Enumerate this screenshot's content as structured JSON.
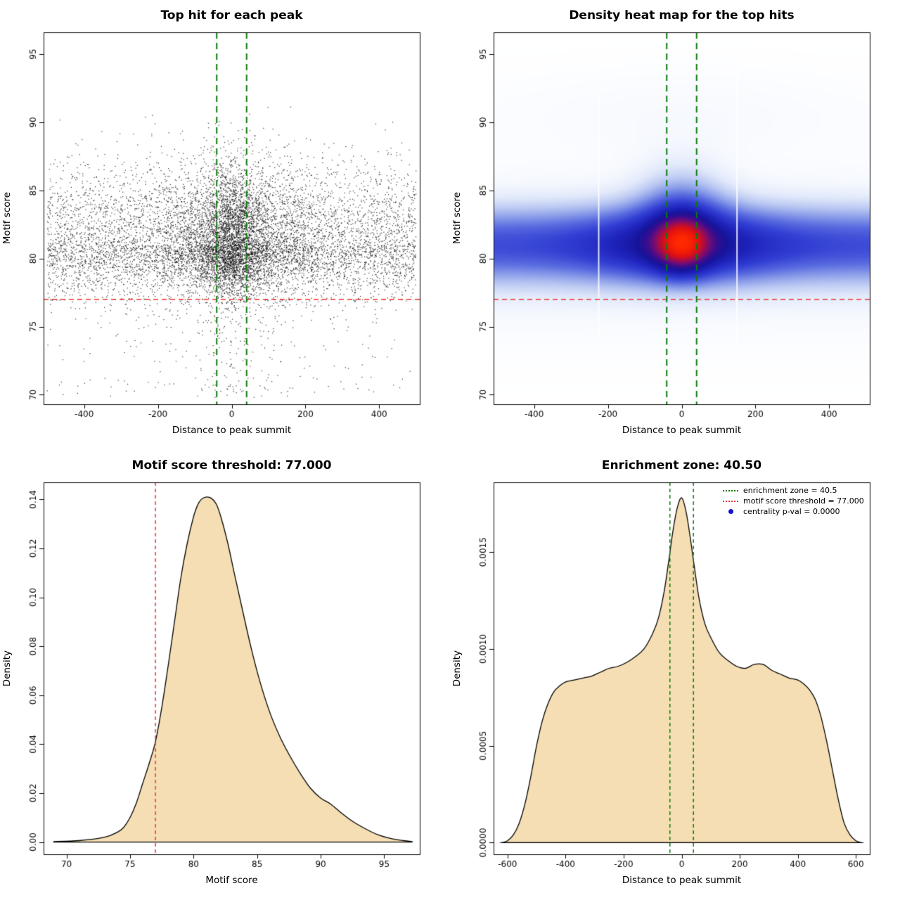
{
  "chart_data": [
    {
      "type": "scatter",
      "title": "Top hit for each peak",
      "xlabel": "Distance to peak summit",
      "ylabel": "Motif score",
      "xlim": [
        -510,
        510
      ],
      "ylim": [
        69.3,
        96.6
      ],
      "xticks": [
        -400,
        -200,
        0,
        200,
        400
      ],
      "xtick_labels": [
        "-400",
        "-200",
        "0",
        "200",
        "400"
      ],
      "yticks": [
        70,
        75,
        80,
        85,
        90,
        95
      ],
      "ytick_labels": [
        "70",
        "75",
        "80",
        "85",
        "90",
        "95"
      ],
      "points": {
        "n": 11000,
        "seed": 7,
        "color": "#000000",
        "size": 1.25,
        "alpha": 0.78,
        "x_mixture": [
          {
            "kind": "uniform",
            "frac": 0.56,
            "min": -500,
            "max": 500
          },
          {
            "kind": "normal",
            "frac": 0.28,
            "mean": 0,
            "sd": 115
          },
          {
            "kind": "normal",
            "frac": 0.16,
            "mean": 0,
            "sd": 38
          }
        ],
        "y_shape": {
          "mode": 81.0,
          "sd_left": 1.9,
          "sd_right": 2.9,
          "min": 69.8,
          "max": 96.4,
          "low_tail_frac": 0.025
        }
      },
      "lines": [
        {
          "name": "motif-score-threshold",
          "orient": "h",
          "at": 77,
          "color": "#ee3333",
          "dash": [
            7,
            5
          ],
          "width": 1.6
        },
        {
          "name": "enrichment-zone-left",
          "orient": "v",
          "at": -40.5,
          "color": "#0c7a0c",
          "dash": [
            9,
            6
          ],
          "width": 2
        },
        {
          "name": "enrichment-zone-right",
          "orient": "v",
          "at": 40.5,
          "color": "#0c7a0c",
          "dash": [
            9,
            6
          ],
          "width": 2
        }
      ]
    },
    {
      "type": "heatmap",
      "title": "Density heat map for the top hits",
      "xlabel": "Distance to peak summit",
      "ylabel": "Motif score",
      "xlim": [
        -510,
        510
      ],
      "ylim": [
        69.3,
        96.6
      ],
      "xticks": [
        -400,
        -200,
        0,
        200,
        400
      ],
      "xtick_labels": [
        "-400",
        "-200",
        "0",
        "200",
        "400"
      ],
      "yticks": [
        70,
        75,
        80,
        85,
        90,
        95
      ],
      "ytick_labels": [
        "70",
        "75",
        "80",
        "85",
        "90",
        "95"
      ],
      "density_model": {
        "components": [
          {
            "amp_base": 0.55,
            "amp_center": 0.45,
            "x_sd": 170,
            "y_mean": 81.0,
            "y_sd": 1.9
          },
          {
            "amp_base": 0.0,
            "amp_center": 0.35,
            "x_sd": 85,
            "y_mean": 83.6,
            "y_sd": 2.3
          },
          {
            "amp_base": 0.0,
            "amp_center": 0.92,
            "x_sd": 50,
            "y_mean": 81.1,
            "y_sd": 1.4
          },
          {
            "amp_base": 0.02,
            "amp_center": 0.04,
            "x_sd": 260,
            "y_mean": 90.5,
            "y_sd": 2.2
          },
          {
            "amp_base": 0.13,
            "amp_center": 0.0,
            "x_sd": 300,
            "y_mean": 80.3,
            "y_sd": 3.6
          }
        ],
        "scale": 2.2,
        "gamma": 0.9
      },
      "colormap": [
        [
          0,
          "#ffffff"
        ],
        [
          0.05,
          "#f5f8fe"
        ],
        [
          0.1,
          "#e2eafb"
        ],
        [
          0.16,
          "#bcc9f3"
        ],
        [
          0.22,
          "#8da0ea"
        ],
        [
          0.29,
          "#5a6ce0"
        ],
        [
          0.37,
          "#3340d4"
        ],
        [
          0.46,
          "#1f24bd"
        ],
        [
          0.55,
          "#16149a"
        ],
        [
          0.63,
          "#3a0d8f"
        ],
        [
          0.71,
          "#750c74"
        ],
        [
          0.79,
          "#b00d3f"
        ],
        [
          0.87,
          "#e31111"
        ],
        [
          1,
          "#ff2800"
        ]
      ],
      "white_columns": [
        -225,
        150
      ],
      "lines": [
        {
          "name": "motif-score-threshold",
          "orient": "h",
          "at": 77,
          "color": "#ee3333",
          "dash": [
            7,
            5
          ],
          "width": 1.6
        },
        {
          "name": "enrichment-zone-left",
          "orient": "v",
          "at": -40.5,
          "color": "#0c7a0c",
          "dash": [
            9,
            6
          ],
          "width": 2
        },
        {
          "name": "enrichment-zone-right",
          "orient": "v",
          "at": 40.5,
          "color": "#0c7a0c",
          "dash": [
            9,
            6
          ],
          "width": 2
        }
      ]
    },
    {
      "type": "density",
      "title": "Motif score threshold: 77.000",
      "xlabel": "Motif score",
      "ylabel": "Density",
      "xlim": [
        68.2,
        97.8
      ],
      "ylim": [
        -0.005,
        0.147
      ],
      "xticks": [
        70,
        75,
        80,
        85,
        90,
        95
      ],
      "xtick_labels": [
        "70",
        "75",
        "80",
        "85",
        "90",
        "95"
      ],
      "yticks": [
        0,
        0.02,
        0.04,
        0.06,
        0.08,
        0.1,
        0.12,
        0.14
      ],
      "ytick_labels": [
        "0.00",
        "0.02",
        "0.04",
        "0.06",
        "0.08",
        "0.10",
        "0.12",
        "0.14"
      ],
      "fill": "#f5deb3",
      "stroke": "#000000",
      "curve": {
        "x": [
          69,
          71,
          73,
          74,
          74.5,
          75,
          75.5,
          76,
          76.5,
          77,
          77.5,
          78,
          78.5,
          79,
          79.5,
          80,
          80.3,
          80.6,
          81,
          81.4,
          81.8,
          82.2,
          82.7,
          83.2,
          83.8,
          84.5,
          85.2,
          86,
          86.8,
          87.6,
          88.4,
          89.2,
          90,
          90.8,
          91.6,
          92.5,
          93.5,
          94.5,
          95.5,
          96.5,
          97.2
        ],
        "y": [
          0.0002,
          0.0006,
          0.002,
          0.004,
          0.006,
          0.01,
          0.016,
          0.024,
          0.032,
          0.041,
          0.055,
          0.072,
          0.09,
          0.108,
          0.122,
          0.133,
          0.1375,
          0.14,
          0.141,
          0.1405,
          0.138,
          0.132,
          0.122,
          0.11,
          0.096,
          0.08,
          0.066,
          0.053,
          0.043,
          0.035,
          0.028,
          0.022,
          0.018,
          0.0155,
          0.012,
          0.0085,
          0.0055,
          0.003,
          0.0015,
          0.0006,
          0.0002
        ]
      },
      "lines": [
        {
          "name": "motif-score-threshold",
          "orient": "v",
          "at": 77,
          "color": "#ee3333",
          "dash": [
            5,
            4
          ],
          "width": 1.5
        }
      ]
    },
    {
      "type": "density",
      "title": "Enrichment zone: 40.50",
      "xlabel": "Distance to peak summit",
      "ylabel": "Density",
      "xlim": [
        -648,
        648
      ],
      "ylim": [
        -6e-05,
        0.00186
      ],
      "xticks": [
        -600,
        -400,
        -200,
        0,
        200,
        400,
        600
      ],
      "xtick_labels": [
        "-600",
        "-400",
        "-200",
        "0",
        "200",
        "400",
        "600"
      ],
      "yticks": [
        0,
        0.0005,
        0.001,
        0.0015
      ],
      "ytick_labels": [
        "0.0000",
        "0.0005",
        "0.0010",
        "0.0015"
      ],
      "fill": "#f5deb3",
      "stroke": "#000000",
      "curve": {
        "x": [
          -620,
          -600,
          -580,
          -560,
          -540,
          -520,
          -500,
          -480,
          -460,
          -440,
          -420,
          -400,
          -370,
          -340,
          -310,
          -280,
          -250,
          -220,
          -190,
          -160,
          -130,
          -100,
          -80,
          -60,
          -45,
          -30,
          -15,
          0,
          15,
          30,
          45,
          60,
          80,
          100,
          130,
          160,
          190,
          220,
          250,
          280,
          310,
          340,
          370,
          400,
          420,
          440,
          460,
          480,
          500,
          520,
          540,
          560,
          580,
          600,
          620
        ],
        "y": [
          0,
          1e-05,
          4e-05,
          0.0001,
          0.0002,
          0.00034,
          0.0005,
          0.00063,
          0.00072,
          0.00078,
          0.00081,
          0.00083,
          0.00084,
          0.00085,
          0.00086,
          0.00088,
          0.0009,
          0.00091,
          0.00093,
          0.00096,
          0.001,
          0.00108,
          0.00116,
          0.0013,
          0.00145,
          0.00161,
          0.00173,
          0.00178,
          0.00171,
          0.00157,
          0.00141,
          0.00126,
          0.00113,
          0.00106,
          0.00098,
          0.00094,
          0.00091,
          0.0009,
          0.00092,
          0.00092,
          0.00089,
          0.00087,
          0.00085,
          0.00084,
          0.00082,
          0.00079,
          0.00074,
          0.00065,
          0.00052,
          0.00037,
          0.00022,
          0.0001,
          4e-05,
          1e-05,
          0
        ]
      },
      "lines": [
        {
          "name": "enrichment-zone-left",
          "orient": "v",
          "at": -40.5,
          "color": "#0c7a0c",
          "dash": [
            5,
            4
          ],
          "width": 1.5
        },
        {
          "name": "enrichment-zone-right",
          "orient": "v",
          "at": 40.5,
          "color": "#0c7a0c",
          "dash": [
            5,
            4
          ],
          "width": 1.5
        }
      ],
      "legend": [
        {
          "sample": "line",
          "icon": "enrichment-zone-line-icon",
          "color": "#0c7a0c",
          "label": "enrichment zone = 40.5"
        },
        {
          "sample": "line",
          "icon": "threshold-line-icon",
          "color": "#ee3333",
          "label": "motif score threshold = 77.000"
        },
        {
          "sample": "point",
          "icon": "centrality-pval-dot-icon",
          "color": "#1212cc",
          "label": "centrality p-val = 0.0000"
        }
      ]
    }
  ]
}
